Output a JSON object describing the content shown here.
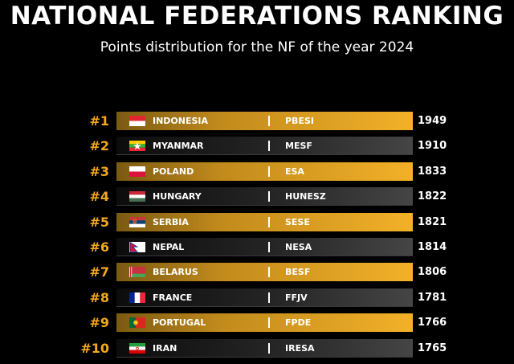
{
  "title": "NATIONAL FEDERATIONS RANKING",
  "subtitle": "Points distribution for the NF of the year 2024",
  "colors": {
    "accent": "#f2a81d",
    "gold_bar": "#f3b128",
    "dark_bar": "#262626"
  },
  "rankings": [
    {
      "rank": "#1",
      "country": "INDONESIA",
      "federation": "PBESI",
      "points": "1949",
      "flag_icon": "indonesia-flag-icon"
    },
    {
      "rank": "#2",
      "country": "MYANMAR",
      "federation": "MESF",
      "points": "1910",
      "flag_icon": "myanmar-flag-icon"
    },
    {
      "rank": "#3",
      "country": "POLAND",
      "federation": "ESA",
      "points": "1833",
      "flag_icon": "poland-flag-icon"
    },
    {
      "rank": "#4",
      "country": "HUNGARY",
      "federation": "HUNESZ",
      "points": "1822",
      "flag_icon": "hungary-flag-icon"
    },
    {
      "rank": "#5",
      "country": "SERBIA",
      "federation": "SESE",
      "points": "1821",
      "flag_icon": "serbia-flag-icon"
    },
    {
      "rank": "#6",
      "country": "NEPAL",
      "federation": "NESA",
      "points": "1814",
      "flag_icon": "nepal-flag-icon"
    },
    {
      "rank": "#7",
      "country": "BELARUS",
      "federation": "BESF",
      "points": "1806",
      "flag_icon": "belarus-flag-icon"
    },
    {
      "rank": "#8",
      "country": "FRANCE",
      "federation": "FFJV",
      "points": "1781",
      "flag_icon": "france-flag-icon"
    },
    {
      "rank": "#9",
      "country": "PORTUGAL",
      "federation": "FPDE",
      "points": "1766",
      "flag_icon": "portugal-flag-icon"
    },
    {
      "rank": "#10",
      "country": "IRAN",
      "federation": "IRESA",
      "points": "1765",
      "flag_icon": "iran-flag-icon"
    }
  ]
}
